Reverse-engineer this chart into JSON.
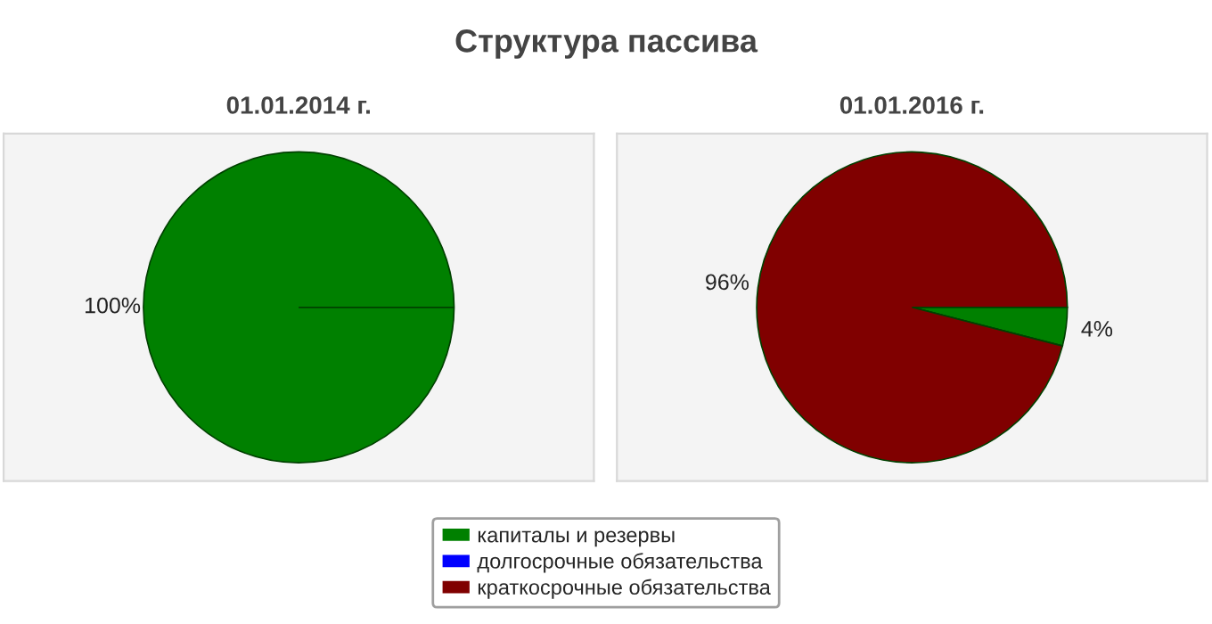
{
  "chart_data": [
    {
      "type": "pie",
      "title": "Структура пассива",
      "subtitle": "01.01.2014 г.",
      "categories": [
        "капиталы и резервы",
        "долгосрочные обязательства",
        "краткосрочные обязательства"
      ],
      "values": [
        100,
        0,
        0
      ],
      "colors": [
        "#008000",
        "#0000ff",
        "#800000"
      ],
      "value_labels": [
        "100%",
        null,
        null
      ],
      "legend": "bottom"
    },
    {
      "type": "pie",
      "subtitle": "01.01.2016 г.",
      "categories": [
        null,
        null,
        null
      ],
      "values": [
        4,
        0,
        96
      ],
      "colors": [
        "#008000",
        "#0000ff",
        "#800000"
      ],
      "value_labels": [
        "4%",
        null,
        "96%"
      ]
    }
  ]
}
